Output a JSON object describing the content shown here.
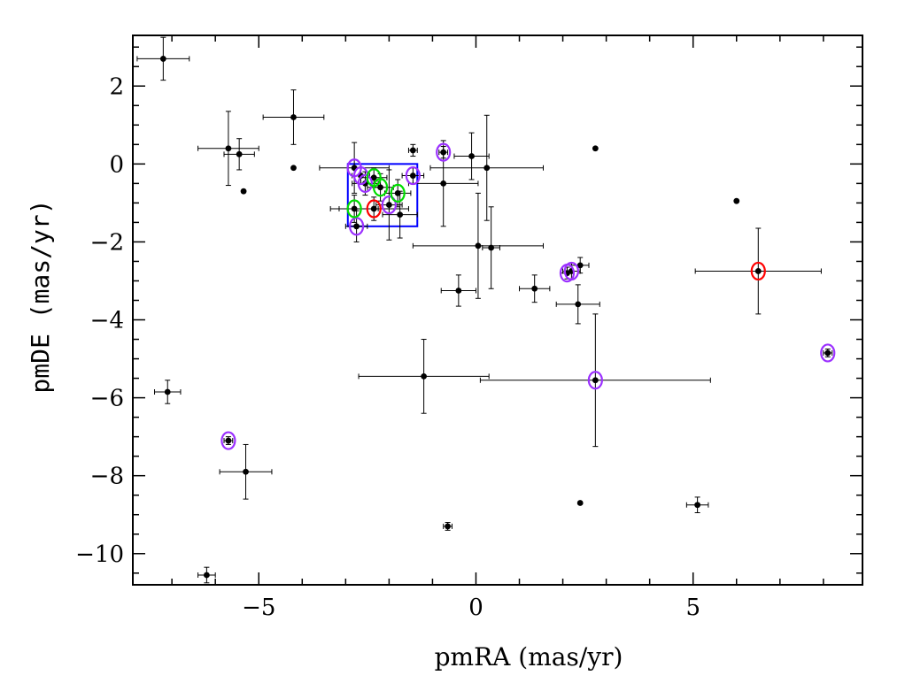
{
  "chart_data": {
    "type": "scatter",
    "title": "",
    "xlabel": "pmRA (mas/yr)",
    "ylabel": "pmDE (mas/yr)",
    "xlim": [
      -7.9,
      8.9
    ],
    "ylim": [
      -10.8,
      3.3
    ],
    "x_ticks": [
      -5,
      0,
      5
    ],
    "x_tick_labels": [
      "−5",
      "0",
      "5"
    ],
    "y_ticks": [
      2,
      0,
      -2,
      -4,
      -6,
      -8,
      -10
    ],
    "y_tick_labels": [
      "2",
      "0",
      "−2",
      "−4",
      "−6",
      "−8",
      "−10"
    ],
    "grid": false,
    "colors": {
      "points": "#000000",
      "box": "#0000ff",
      "purple_marker": "#9b30ff",
      "green_marker": "#00dd00",
      "red_marker": "#ff0000"
    },
    "points": [
      {
        "x": -7.2,
        "y": 2.7,
        "xerr": 0.6,
        "yerr": 0.55
      },
      {
        "x": -5.7,
        "y": 0.4,
        "xerr": 0.7,
        "yerr": 0.95
      },
      {
        "x": -5.45,
        "y": 0.25,
        "xerr": 0.35,
        "yerr": 0.4
      },
      {
        "x": -5.35,
        "y": -0.7,
        "xerr": 0,
        "yerr": 0
      },
      {
        "x": -4.2,
        "y": 1.2,
        "xerr": 0.7,
        "yerr": 0.7
      },
      {
        "x": -4.2,
        "y": -0.1,
        "xerr": 0,
        "yerr": 0
      },
      {
        "x": -2.8,
        "y": -0.1,
        "xerr": 0.8,
        "yerr": 0.65
      },
      {
        "x": -2.65,
        "y": -0.3,
        "xerr": 0.2,
        "yerr": 0.2
      },
      {
        "x": -2.55,
        "y": -0.5,
        "xerr": 0.3,
        "yerr": 0.3
      },
      {
        "x": -2.35,
        "y": -0.35,
        "xerr": 0.3,
        "yerr": 0.25
      },
      {
        "x": -2.2,
        "y": -0.6,
        "xerr": 0.3,
        "yerr": 0.35
      },
      {
        "x": -2.8,
        "y": -1.15,
        "xerr": 0.55,
        "yerr": 0.35
      },
      {
        "x": -2.35,
        "y": -1.15,
        "xerr": 0.8,
        "yerr": 0.3
      },
      {
        "x": -2.0,
        "y": -1.05,
        "xerr": 0.3,
        "yerr": 0.9
      },
      {
        "x": -1.8,
        "y": -0.75,
        "xerr": 0.3,
        "yerr": 0.35
      },
      {
        "x": -1.75,
        "y": -1.3,
        "xerr": 0.4,
        "yerr": 0.6
      },
      {
        "x": -2.75,
        "y": -1.6,
        "xerr": 0.25,
        "yerr": 0.4
      },
      {
        "x": -1.45,
        "y": 0.35,
        "xerr": 0.1,
        "yerr": 0.15
      },
      {
        "x": -1.45,
        "y": -0.3,
        "xerr": 0.25,
        "yerr": 0.2
      },
      {
        "x": -0.75,
        "y": 0.3,
        "xerr": 0.1,
        "yerr": 0.15
      },
      {
        "x": -0.75,
        "y": -0.5,
        "xerr": 0.8,
        "yerr": 1.1
      },
      {
        "x": -0.1,
        "y": 0.2,
        "xerr": 0.4,
        "yerr": 0.6
      },
      {
        "x": 0.25,
        "y": -0.1,
        "xerr": 1.3,
        "yerr": 1.35
      },
      {
        "x": 0.05,
        "y": -2.1,
        "xerr": 1.5,
        "yerr": 1.35
      },
      {
        "x": 0.35,
        "y": -2.15,
        "xerr": 0.2,
        "yerr": 1.05
      },
      {
        "x": -0.4,
        "y": -3.25,
        "xerr": 0.4,
        "yerr": 0.4
      },
      {
        "x": 1.35,
        "y": -3.2,
        "xerr": 0.35,
        "yerr": 0.35
      },
      {
        "x": 2.1,
        "y": -2.8,
        "xerr": 0.15,
        "yerr": 0.15
      },
      {
        "x": 2.2,
        "y": -2.75,
        "xerr": 0.2,
        "yerr": 0.2
      },
      {
        "x": 2.4,
        "y": -2.6,
        "xerr": 0.2,
        "yerr": 0.2
      },
      {
        "x": 2.35,
        "y": -3.6,
        "xerr": 0.5,
        "yerr": 0.5
      },
      {
        "x": 2.75,
        "y": 0.4,
        "xerr": 0,
        "yerr": 0
      },
      {
        "x": 2.75,
        "y": -5.55,
        "xerr": 2.65,
        "yerr": 1.7
      },
      {
        "x": -1.2,
        "y": -5.45,
        "xerr": 1.5,
        "yerr": 0.95
      },
      {
        "x": 6.0,
        "y": -0.95,
        "xerr": 0,
        "yerr": 0
      },
      {
        "x": 6.5,
        "y": -2.75,
        "xerr": 1.45,
        "yerr": 1.1
      },
      {
        "x": 8.1,
        "y": -4.85,
        "xerr": 0.1,
        "yerr": 0.1
      },
      {
        "x": -7.1,
        "y": -5.85,
        "xerr": 0.3,
        "yerr": 0.3
      },
      {
        "x": -5.7,
        "y": -7.1,
        "xerr": 0.1,
        "yerr": 0.1
      },
      {
        "x": -5.3,
        "y": -7.9,
        "xerr": 0.6,
        "yerr": 0.7
      },
      {
        "x": 2.4,
        "y": -8.7,
        "xerr": 0,
        "yerr": 0
      },
      {
        "x": 5.1,
        "y": -8.75,
        "xerr": 0.25,
        "yerr": 0.2
      },
      {
        "x": -0.65,
        "y": -9.3,
        "xerr": 0.1,
        "yerr": 0.1
      },
      {
        "x": -6.2,
        "y": -10.55,
        "xerr": 0.2,
        "yerr": 0.2
      }
    ],
    "circled": [
      {
        "x": -2.8,
        "y": -0.1,
        "color": "purple"
      },
      {
        "x": -2.65,
        "y": -0.3,
        "color": "purple"
      },
      {
        "x": -2.55,
        "y": -0.5,
        "color": "purple"
      },
      {
        "x": -2.0,
        "y": -1.05,
        "color": "purple"
      },
      {
        "x": -2.75,
        "y": -1.6,
        "color": "purple"
      },
      {
        "x": -1.45,
        "y": -0.3,
        "color": "purple"
      },
      {
        "x": -0.75,
        "y": 0.3,
        "color": "purple"
      },
      {
        "x": 2.1,
        "y": -2.8,
        "color": "purple"
      },
      {
        "x": 2.2,
        "y": -2.75,
        "color": "purple"
      },
      {
        "x": 2.75,
        "y": -5.55,
        "color": "purple"
      },
      {
        "x": 8.1,
        "y": -4.85,
        "color": "purple"
      },
      {
        "x": -5.7,
        "y": -7.1,
        "color": "purple"
      },
      {
        "x": -2.35,
        "y": -0.35,
        "color": "green"
      },
      {
        "x": -2.2,
        "y": -0.6,
        "color": "green"
      },
      {
        "x": -1.8,
        "y": -0.75,
        "color": "green"
      },
      {
        "x": -2.8,
        "y": -1.15,
        "color": "green"
      },
      {
        "x": -2.35,
        "y": -1.15,
        "color": "red"
      },
      {
        "x": 6.5,
        "y": -2.75,
        "color": "red"
      }
    ],
    "box": {
      "x0": -2.95,
      "x1": -1.35,
      "y0": -1.6,
      "y1": 0.0
    }
  }
}
